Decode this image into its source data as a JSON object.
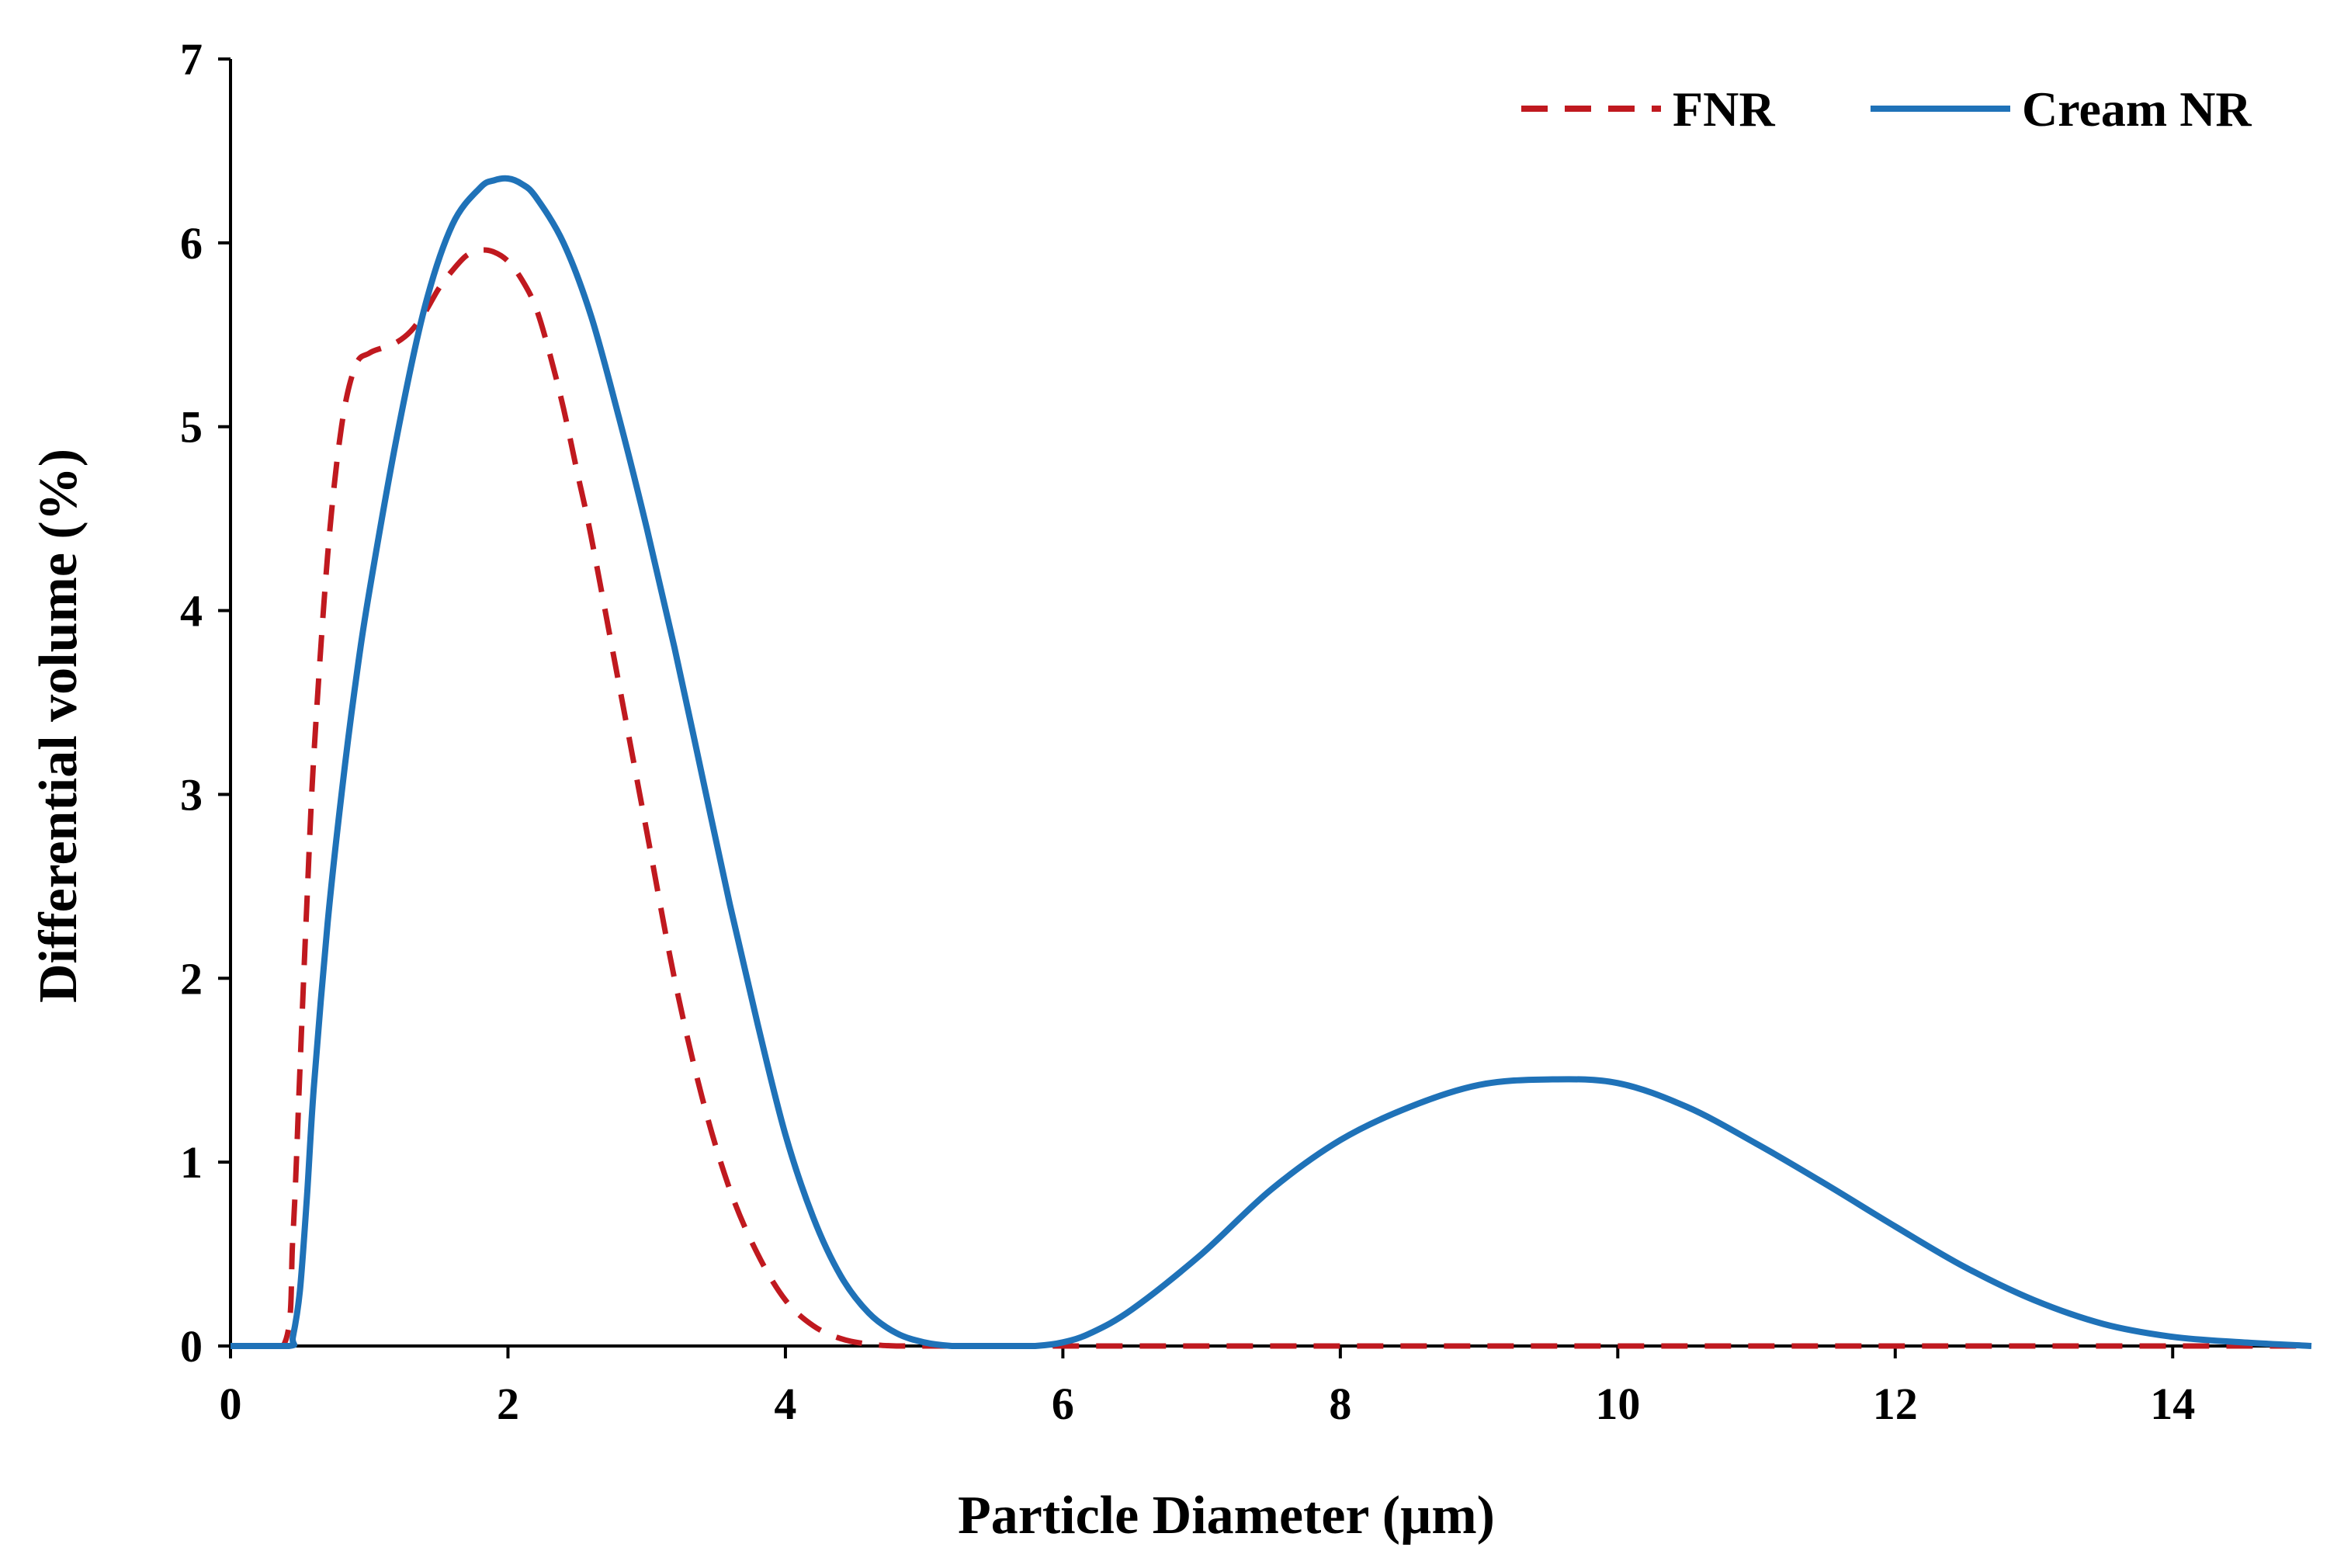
{
  "chart_data": {
    "type": "line",
    "title": "",
    "xlabel": "Particle Diameter (µm)",
    "ylabel": "Differential volume (%)",
    "xlim": [
      0,
      15
    ],
    "ylim": [
      0,
      7
    ],
    "x_ticks": [
      0,
      2,
      4,
      6,
      8,
      10,
      12,
      14
    ],
    "y_ticks": [
      0,
      1,
      2,
      3,
      4,
      5,
      6,
      7
    ],
    "grid": false,
    "legend_position": "top-right",
    "series": [
      {
        "name": "FNR",
        "style": "dashed",
        "color": "#c0191f",
        "x": [
          0,
          0.38,
          0.45,
          0.5,
          0.55,
          0.6,
          0.7,
          0.8,
          0.9,
          1.0,
          1.1,
          1.2,
          1.3,
          1.4,
          1.5,
          1.6,
          1.7,
          1.8,
          1.9,
          2.0,
          2.1,
          2.2,
          2.3,
          2.4,
          2.5,
          2.6,
          2.8,
          3.0,
          3.2,
          3.4,
          3.6,
          3.8,
          4.0,
          4.2,
          4.4,
          4.6,
          4.8,
          5.0,
          6,
          8,
          10,
          12,
          14,
          15
        ],
        "y": [
          0,
          0,
          0.6,
          1.5,
          2.4,
          3.2,
          4.3,
          5.0,
          5.33,
          5.4,
          5.43,
          5.46,
          5.52,
          5.62,
          5.75,
          5.85,
          5.93,
          5.96,
          5.95,
          5.9,
          5.8,
          5.65,
          5.4,
          5.1,
          4.75,
          4.4,
          3.6,
          2.8,
          2.0,
          1.35,
          0.85,
          0.5,
          0.25,
          0.11,
          0.04,
          0.01,
          0,
          0,
          0,
          0,
          0,
          0,
          0,
          0
        ]
      },
      {
        "name": "Cream NR",
        "style": "solid",
        "color": "#1f72b8",
        "x": [
          0,
          0.42,
          0.45,
          0.5,
          0.55,
          0.6,
          0.7,
          0.8,
          0.9,
          1.0,
          1.2,
          1.4,
          1.6,
          1.8,
          1.9,
          2.0,
          2.1,
          2.2,
          2.4,
          2.6,
          2.8,
          3.0,
          3.2,
          3.4,
          3.6,
          3.8,
          4.0,
          4.2,
          4.4,
          4.6,
          4.8,
          5.0,
          5.2,
          5.4,
          5.6,
          5.8,
          6.0,
          6.2,
          6.5,
          7.0,
          7.5,
          8.0,
          8.5,
          9.0,
          9.5,
          10.0,
          10.5,
          11.0,
          11.5,
          12.0,
          12.5,
          13.0,
          13.5,
          14.0,
          14.5,
          15.0
        ],
        "y": [
          0,
          0,
          0.05,
          0.3,
          0.8,
          1.4,
          2.3,
          3.0,
          3.6,
          4.1,
          4.95,
          5.65,
          6.1,
          6.3,
          6.34,
          6.35,
          6.32,
          6.25,
          6.0,
          5.6,
          5.05,
          4.45,
          3.8,
          3.1,
          2.4,
          1.75,
          1.15,
          0.7,
          0.38,
          0.18,
          0.07,
          0.02,
          0,
          0,
          0,
          0,
          0.02,
          0.07,
          0.2,
          0.5,
          0.85,
          1.12,
          1.3,
          1.42,
          1.45,
          1.43,
          1.3,
          1.1,
          0.88,
          0.65,
          0.43,
          0.25,
          0.12,
          0.05,
          0.02,
          0
        ]
      }
    ]
  }
}
